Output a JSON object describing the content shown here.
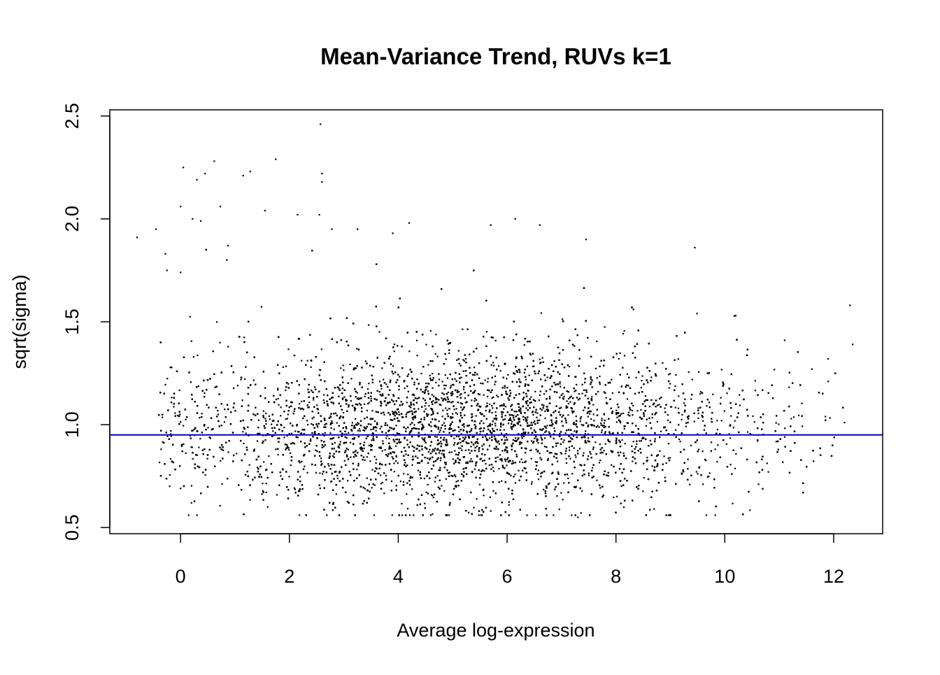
{
  "chart_data": {
    "type": "scatter",
    "title": "Mean-Variance Trend, RUVs k=1",
    "xlabel": "Average log-expression",
    "ylabel": "sqrt(sigma)",
    "xlim": [
      -1.3,
      12.9
    ],
    "ylim": [
      0.47,
      2.53
    ],
    "x_ticks": [
      "0",
      "2",
      "4",
      "6",
      "8",
      "10",
      "12"
    ],
    "y_ticks": [
      "0.5",
      "1.0",
      "1.5",
      "2.0",
      "2.5"
    ],
    "grid": false,
    "legend": "none",
    "trend_line": {
      "y": 0.95,
      "color": "#0000cc"
    },
    "point_color": "#000000",
    "point_count": 9000,
    "points": [
      [
        -0.8,
        1.91
      ],
      [
        -0.45,
        1.95
      ],
      [
        -0.28,
        1.83
      ],
      [
        -0.25,
        1.75
      ],
      [
        0.0,
        2.06
      ],
      [
        0.05,
        2.25
      ],
      [
        0.0,
        1.74
      ],
      [
        0.22,
        2.0
      ],
      [
        0.3,
        2.19
      ],
      [
        0.37,
        1.99
      ],
      [
        0.45,
        2.22
      ],
      [
        0.62,
        2.28
      ],
      [
        0.73,
        2.06
      ],
      [
        0.85,
        1.8
      ],
      [
        0.87,
        1.87
      ],
      [
        1.15,
        2.21
      ],
      [
        1.28,
        2.23
      ],
      [
        1.55,
        2.04
      ],
      [
        1.75,
        2.29
      ],
      [
        2.15,
        2.02
      ],
      [
        2.57,
        2.46
      ],
      [
        2.6,
        2.22
      ],
      [
        2.6,
        2.18
      ],
      [
        2.55,
        2.02
      ],
      [
        2.78,
        1.95
      ],
      [
        3.25,
        1.95
      ],
      [
        3.9,
        1.93
      ],
      [
        4.2,
        1.98
      ],
      [
        5.7,
        1.97
      ],
      [
        6.15,
        2.0
      ],
      [
        6.6,
        1.97
      ],
      [
        7.45,
        1.9
      ],
      [
        9.45,
        1.86
      ],
      [
        12.3,
        1.58
      ],
      [
        12.35,
        1.39
      ],
      [
        11.9,
        1.32
      ],
      [
        11.9,
        1.21
      ],
      [
        11.1,
        1.41
      ],
      [
        11.6,
        1.27
      ],
      [
        12.2,
        1.01
      ],
      [
        7.3,
        0.55
      ],
      [
        8.7,
        0.59
      ],
      [
        5.7,
        0.58
      ],
      [
        1.6,
        0.6
      ],
      [
        0.0,
        0.69
      ],
      [
        -0.2,
        0.7
      ],
      [
        9.6,
        0.71
      ],
      [
        10.8,
        0.77
      ],
      [
        0.2,
        0.62
      ],
      [
        10.2,
        1.53
      ]
    ]
  }
}
